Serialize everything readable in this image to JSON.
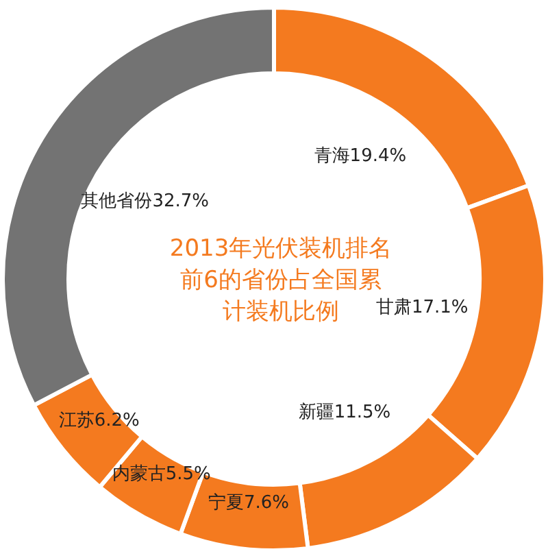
{
  "chart_data": {
    "type": "donut",
    "title": "2013年光伏装机排名前6的省份占全国累计装机比例",
    "categories": [
      "青海",
      "甘肃",
      "新疆",
      "宁夏",
      "内蒙古",
      "江苏",
      "其他省份"
    ],
    "values": [
      19.4,
      17.1,
      11.5,
      7.6,
      5.5,
      6.2,
      32.7
    ],
    "value_labels": [
      "19.4%",
      "17.1%",
      "11.5%",
      "7.6%",
      "5.5%",
      "6.2%",
      "32.7%"
    ],
    "colors": [
      "#f47a1f",
      "#f47a1f",
      "#f47a1f",
      "#f47a1f",
      "#f47a1f",
      "#f47a1f",
      "#737373"
    ]
  }
}
